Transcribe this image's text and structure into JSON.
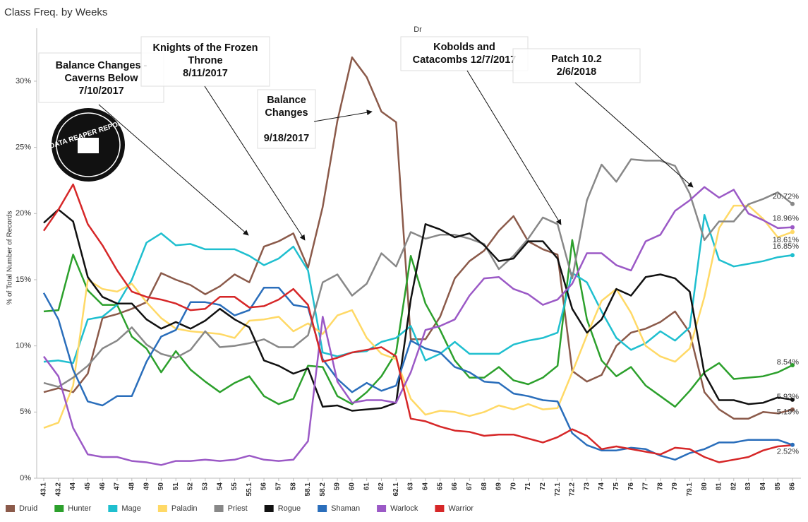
{
  "chart_data": {
    "type": "line",
    "title": "Class Freq. by Weeks",
    "header": "Dr",
    "ylabel": "% of Total Number of Records",
    "logo": "DATA REAPER REPORT",
    "categories": [
      "43.1",
      "43.2",
      "44",
      "45",
      "46",
      "47",
      "48",
      "49",
      "50",
      "51",
      "52",
      "53",
      "54",
      "55",
      "55.1",
      "56",
      "57",
      "58",
      "58.1",
      "58.2",
      "59",
      "60",
      "61",
      "62",
      "62.1",
      "63",
      "64",
      "65",
      "66",
      "67",
      "68",
      "69",
      "70",
      "71",
      "72",
      "72.1",
      "72.2",
      "73",
      "74",
      "75",
      "76",
      "77",
      "78",
      "79",
      "79.1",
      "80",
      "81",
      "82",
      "83",
      "84",
      "85",
      "86"
    ],
    "ylim": [
      0,
      34
    ],
    "yticks": [
      {
        "value": 0,
        "label": "0%"
      },
      {
        "value": 5,
        "label": "5%"
      },
      {
        "value": 10,
        "label": "10%"
      },
      {
        "value": 15,
        "label": "15%"
      },
      {
        "value": 20,
        "label": "20%"
      },
      {
        "value": 25,
        "label": "25%"
      },
      {
        "value": 30,
        "label": "30%"
      }
    ],
    "grid": false,
    "legend": "bottom",
    "series": [
      {
        "name": "Druid",
        "color": "#8b5a4a",
        "values": [
          6.5,
          6.8,
          6.5,
          7.9,
          12.1,
          12.4,
          12.8,
          13.3,
          15.5,
          15.0,
          14.6,
          13.9,
          14.5,
          15.4,
          14.8,
          17.5,
          17.9,
          18.5,
          15.9,
          20.5,
          27.0,
          31.8,
          30.3,
          27.7,
          26.9,
          10.5,
          10.5,
          12.2,
          15.1,
          16.4,
          17.2,
          18.7,
          19.8,
          17.9,
          17.3,
          16.9,
          8.1,
          7.3,
          7.8,
          10.0,
          11.0,
          11.3,
          11.8,
          12.6,
          11.0,
          6.5,
          5.2,
          4.5,
          4.5,
          5.0,
          4.9,
          5.19
        ],
        "value_labels": [
          null,
          null,
          null,
          null,
          null,
          null,
          null,
          null,
          null,
          null,
          null,
          null,
          null,
          null,
          null,
          null,
          null,
          null,
          null,
          null,
          null,
          null,
          null,
          null,
          null,
          null,
          null,
          null,
          null,
          null,
          null,
          null,
          null,
          null,
          null,
          null,
          null,
          null,
          null,
          null,
          null,
          null,
          null,
          null,
          null,
          null,
          null,
          null,
          null,
          null,
          null,
          "5.19%"
        ]
      },
      {
        "name": "Hunter",
        "color": "#2ca02c",
        "values": [
          12.6,
          12.7,
          16.9,
          14.2,
          13.1,
          13.1,
          10.7,
          9.8,
          8.0,
          9.6,
          8.2,
          7.3,
          6.5,
          7.2,
          7.7,
          6.2,
          5.6,
          6.0,
          8.5,
          8.4,
          6.2,
          5.6,
          6.5,
          7.7,
          9.5,
          16.8,
          13.2,
          11.2,
          8.9,
          7.6,
          7.6,
          8.4,
          7.4,
          7.1,
          7.6,
          8.5,
          18.0,
          12.0,
          8.9,
          7.7,
          8.4,
          7.0,
          6.2,
          5.4,
          6.6,
          8.0,
          8.7,
          7.5,
          7.6,
          7.7,
          8.0,
          8.54
        ],
        "value_labels": [
          null,
          null,
          null,
          null,
          null,
          null,
          null,
          null,
          null,
          null,
          null,
          null,
          null,
          null,
          null,
          null,
          null,
          null,
          null,
          null,
          null,
          null,
          null,
          null,
          null,
          null,
          null,
          null,
          null,
          null,
          null,
          null,
          null,
          null,
          null,
          null,
          null,
          null,
          null,
          null,
          null,
          null,
          null,
          null,
          null,
          null,
          null,
          null,
          null,
          null,
          null,
          "8.54%"
        ]
      },
      {
        "name": "Mage",
        "color": "#1fbfcf",
        "values": [
          8.8,
          8.9,
          8.7,
          12.0,
          12.2,
          13.1,
          15.0,
          17.8,
          18.5,
          17.6,
          17.7,
          17.3,
          17.3,
          17.3,
          16.8,
          16.1,
          16.6,
          17.5,
          15.7,
          9.5,
          9.2,
          9.5,
          9.6,
          10.3,
          10.6,
          11.5,
          8.9,
          9.4,
          10.3,
          9.4,
          9.4,
          9.4,
          10.1,
          10.4,
          10.6,
          11.0,
          15.5,
          14.8,
          12.6,
          10.6,
          9.7,
          10.2,
          11.1,
          10.4,
          11.4,
          19.9,
          16.5,
          16.0,
          16.2,
          16.4,
          16.7,
          16.85
        ],
        "value_labels": [
          null,
          null,
          null,
          null,
          null,
          null,
          null,
          null,
          null,
          null,
          null,
          null,
          null,
          null,
          null,
          null,
          null,
          null,
          null,
          null,
          null,
          null,
          null,
          null,
          null,
          null,
          null,
          null,
          null,
          null,
          null,
          null,
          null,
          null,
          null,
          null,
          null,
          null,
          null,
          null,
          null,
          null,
          null,
          null,
          null,
          null,
          null,
          null,
          null,
          null,
          null,
          "16.85%"
        ]
      },
      {
        "name": "Paladin",
        "color": "#ffd966",
        "values": [
          3.8,
          4.2,
          7.0,
          15.0,
          14.3,
          14.1,
          14.7,
          13.3,
          12.1,
          11.3,
          11.1,
          11.0,
          10.9,
          10.6,
          11.9,
          12.0,
          12.2,
          11.1,
          11.7,
          10.9,
          12.3,
          12.7,
          10.6,
          9.4,
          9.0,
          6.0,
          4.8,
          5.1,
          5.0,
          4.7,
          5.0,
          5.5,
          5.2,
          5.6,
          5.2,
          5.3,
          8.0,
          10.8,
          13.4,
          14.3,
          12.5,
          10.0,
          9.2,
          8.8,
          9.8,
          13.7,
          18.9,
          20.6,
          20.6,
          19.6,
          18.2,
          18.61
        ],
        "value_labels": [
          null,
          null,
          null,
          null,
          null,
          null,
          null,
          null,
          null,
          null,
          null,
          null,
          null,
          null,
          null,
          null,
          null,
          null,
          null,
          null,
          null,
          null,
          null,
          null,
          null,
          null,
          null,
          null,
          null,
          null,
          null,
          null,
          null,
          null,
          null,
          null,
          null,
          null,
          null,
          null,
          null,
          null,
          null,
          null,
          null,
          null,
          null,
          null,
          null,
          null,
          null,
          "18.61%"
        ]
      },
      {
        "name": "Priest",
        "color": "#888888",
        "values": [
          7.2,
          6.9,
          7.6,
          8.5,
          9.8,
          10.4,
          11.4,
          10.1,
          9.4,
          9.1,
          9.7,
          11.1,
          9.9,
          10.0,
          10.2,
          10.5,
          9.9,
          9.9,
          10.8,
          14.8,
          15.4,
          13.8,
          14.7,
          17.0,
          16.0,
          18.6,
          18.1,
          18.4,
          18.4,
          18.1,
          17.7,
          15.8,
          16.8,
          18.1,
          19.7,
          19.2,
          15.1,
          21.0,
          23.7,
          22.4,
          24.1,
          24.0,
          24.0,
          23.6,
          21.5,
          18.0,
          19.4,
          19.4,
          20.7,
          21.1,
          21.6,
          20.72
        ],
        "value_labels": [
          null,
          null,
          null,
          null,
          null,
          null,
          null,
          null,
          null,
          null,
          null,
          null,
          null,
          null,
          null,
          null,
          null,
          null,
          null,
          null,
          null,
          null,
          null,
          null,
          null,
          null,
          null,
          null,
          null,
          null,
          null,
          null,
          null,
          null,
          null,
          null,
          null,
          null,
          null,
          null,
          null,
          null,
          null,
          null,
          null,
          null,
          null,
          null,
          null,
          null,
          null,
          "20.72%"
        ]
      },
      {
        "name": "Rogue",
        "color": "#111111",
        "values": [
          19.3,
          20.3,
          19.4,
          15.2,
          13.7,
          13.2,
          13.2,
          12.0,
          11.3,
          11.8,
          11.3,
          11.9,
          12.8,
          12.0,
          11.4,
          8.9,
          8.5,
          7.9,
          8.3,
          5.4,
          5.5,
          5.1,
          5.2,
          5.3,
          5.7,
          13.5,
          19.2,
          18.8,
          18.2,
          18.5,
          17.6,
          16.4,
          16.6,
          17.9,
          17.9,
          16.6,
          12.8,
          11.0,
          12.0,
          14.3,
          13.8,
          15.2,
          15.4,
          15.1,
          14.1,
          7.9,
          5.9,
          5.9,
          5.6,
          5.7,
          6.1,
          5.93
        ],
        "value_labels": [
          null,
          null,
          null,
          null,
          null,
          null,
          null,
          null,
          null,
          null,
          null,
          null,
          null,
          null,
          null,
          null,
          null,
          null,
          null,
          null,
          null,
          null,
          null,
          null,
          null,
          null,
          null,
          null,
          null,
          null,
          null,
          null,
          null,
          null,
          null,
          null,
          null,
          null,
          null,
          null,
          null,
          null,
          null,
          null,
          null,
          null,
          null,
          null,
          null,
          null,
          null,
          "5.93%"
        ]
      },
      {
        "name": "Shaman",
        "color": "#2a6ebb",
        "values": [
          14.0,
          12.0,
          8.2,
          5.8,
          5.5,
          6.2,
          6.2,
          8.8,
          10.7,
          11.2,
          13.3,
          13.3,
          13.1,
          12.3,
          12.7,
          14.4,
          14.4,
          13.1,
          12.9,
          9.0,
          7.5,
          6.5,
          7.2,
          6.6,
          7.0,
          10.4,
          9.8,
          9.5,
          8.4,
          8.0,
          7.3,
          7.2,
          6.4,
          6.2,
          5.9,
          5.8,
          3.4,
          2.5,
          2.1,
          2.1,
          2.3,
          2.2,
          1.7,
          1.4,
          1.9,
          2.2,
          2.7,
          2.7,
          2.9,
          2.9,
          2.9,
          2.52
        ],
        "value_labels": [
          null,
          null,
          null,
          null,
          null,
          null,
          null,
          null,
          null,
          null,
          null,
          null,
          null,
          null,
          null,
          null,
          null,
          null,
          null,
          null,
          null,
          null,
          null,
          null,
          null,
          null,
          null,
          null,
          null,
          null,
          null,
          null,
          null,
          null,
          null,
          null,
          null,
          null,
          null,
          null,
          null,
          null,
          null,
          null,
          null,
          null,
          null,
          null,
          null,
          null,
          null,
          "2.52%"
        ]
      },
      {
        "name": "Warlock",
        "color": "#9b59c6",
        "values": [
          9.2,
          7.7,
          3.8,
          1.8,
          1.6,
          1.6,
          1.3,
          1.2,
          1.0,
          1.3,
          1.3,
          1.4,
          1.3,
          1.4,
          1.7,
          1.4,
          1.3,
          1.4,
          2.8,
          12.2,
          7.3,
          5.7,
          5.9,
          5.9,
          5.7,
          8.0,
          11.2,
          11.5,
          12.0,
          13.8,
          15.1,
          15.2,
          14.3,
          13.9,
          13.1,
          13.5,
          14.7,
          17.0,
          17.0,
          16.1,
          15.7,
          17.9,
          18.4,
          20.2,
          21.0,
          22.0,
          21.2,
          21.8,
          20.0,
          19.5,
          18.9,
          18.96
        ],
        "value_labels": [
          null,
          null,
          null,
          null,
          null,
          null,
          null,
          null,
          null,
          null,
          null,
          null,
          null,
          null,
          null,
          null,
          null,
          null,
          null,
          null,
          null,
          null,
          null,
          null,
          null,
          null,
          null,
          null,
          null,
          null,
          null,
          null,
          null,
          null,
          null,
          null,
          null,
          null,
          null,
          null,
          null,
          null,
          null,
          null,
          null,
          null,
          null,
          null,
          null,
          null,
          null,
          "18.96%"
        ]
      },
      {
        "name": "Warrior",
        "color": "#d62728",
        "values": [
          18.7,
          20.3,
          22.2,
          19.2,
          17.6,
          15.7,
          14.1,
          13.7,
          13.5,
          13.2,
          12.7,
          12.8,
          13.7,
          13.7,
          12.9,
          13.0,
          13.5,
          14.3,
          13.1,
          8.8,
          9.1,
          9.5,
          9.7,
          9.9,
          9.2,
          4.5,
          4.3,
          3.9,
          3.6,
          3.5,
          3.2,
          3.3,
          3.3,
          3.0,
          2.7,
          3.1,
          3.7,
          3.2,
          2.2,
          2.4,
          2.2,
          2.0,
          1.8,
          2.3,
          2.2,
          1.6,
          1.2,
          1.4,
          1.6,
          2.1,
          2.4,
          2.5
        ]
      }
    ],
    "annotations": [
      {
        "lines": [
          "Balance Changes -",
          "Caverns Below",
          "7/10/2017"
        ]
      },
      {
        "lines": [
          "Knights of the Frozen",
          "Throne",
          "8/11/2017"
        ]
      },
      {
        "lines": [
          "Balance",
          "Changes",
          "9/18/2017"
        ]
      },
      {
        "lines": [
          "Kobolds and",
          "Catacombs 12/7/2017"
        ]
      },
      {
        "lines": [
          "Patch 10.2",
          "2/6/2018"
        ]
      }
    ]
  }
}
